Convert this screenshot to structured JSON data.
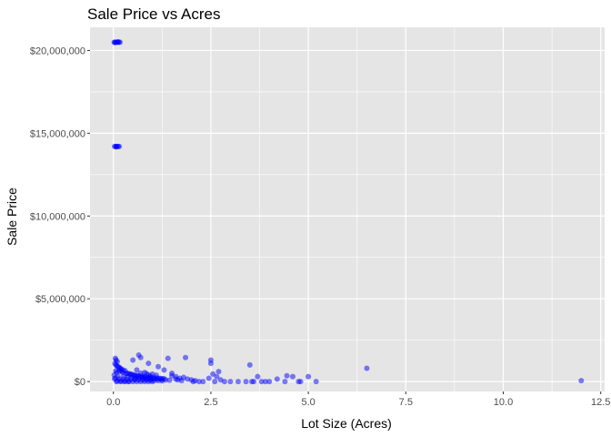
{
  "chart_data": {
    "type": "scatter",
    "title": "Sale Price vs Acres",
    "xlabel": "Lot Size (Acres)",
    "ylabel": "Sale Price",
    "xlim": [
      -0.6,
      12.6
    ],
    "ylim": [
      -600000,
      21400000
    ],
    "x_ticks": [
      0,
      2.5,
      5,
      7.5,
      10,
      12.5
    ],
    "x_tick_labels": [
      "0.0",
      "2.5",
      "5.0",
      "7.5",
      "10.0",
      "12.5"
    ],
    "y_ticks": [
      0,
      5000000,
      10000000,
      15000000,
      20000000
    ],
    "y_tick_labels": [
      "$0",
      "$5,000,000",
      "$10,000,000",
      "$15,000,000",
      "$20,000,000"
    ],
    "grid": true,
    "point_color": "#0000ff",
    "point_alpha": 0.5,
    "panel_background": "#e5e5e5",
    "grid_color": "#ffffff",
    "points": [
      [
        0.02,
        20500000
      ],
      [
        0.05,
        20500000
      ],
      [
        0.08,
        20500000
      ],
      [
        0.11,
        20500000
      ],
      [
        0.14,
        20500000
      ],
      [
        0.17,
        20500000
      ],
      [
        0.04,
        20480000
      ],
      [
        0.12,
        20520000
      ],
      [
        0.03,
        14200000
      ],
      [
        0.06,
        14200000
      ],
      [
        0.09,
        14200000
      ],
      [
        0.12,
        14200000
      ],
      [
        0.15,
        14200000
      ],
      [
        0.07,
        14180000
      ],
      [
        0.05,
        1400000
      ],
      [
        0.07,
        1300000
      ],
      [
        0.1,
        1200000
      ],
      [
        0.04,
        1100000
      ],
      [
        0.06,
        1000000
      ],
      [
        0.09,
        950000
      ],
      [
        0.12,
        900000
      ],
      [
        0.15,
        850000
      ],
      [
        0.18,
        800000
      ],
      [
        0.2,
        750000
      ],
      [
        0.25,
        700000
      ],
      [
        0.3,
        650000
      ],
      [
        0.22,
        600000
      ],
      [
        0.08,
        550000
      ],
      [
        0.35,
        500000
      ],
      [
        0.4,
        480000
      ],
      [
        0.45,
        450000
      ],
      [
        0.5,
        420000
      ],
      [
        0.02,
        400000
      ],
      [
        0.55,
        380000
      ],
      [
        0.6,
        360000
      ],
      [
        0.65,
        340000
      ],
      [
        0.7,
        320000
      ],
      [
        0.12,
        300000
      ],
      [
        0.75,
        300000
      ],
      [
        0.8,
        280000
      ],
      [
        0.85,
        260000
      ],
      [
        0.9,
        250000
      ],
      [
        0.95,
        240000
      ],
      [
        1.0,
        230000
      ],
      [
        0.05,
        220000
      ],
      [
        1.05,
        220000
      ],
      [
        1.1,
        210000
      ],
      [
        1.15,
        200000
      ],
      [
        1.2,
        190000
      ],
      [
        1.25,
        180000
      ],
      [
        1.3,
        170000
      ],
      [
        0.03,
        160000
      ],
      [
        0.15,
        150000
      ],
      [
        0.25,
        140000
      ],
      [
        0.35,
        130000
      ],
      [
        0.45,
        120000
      ],
      [
        0.55,
        110000
      ],
      [
        0.65,
        100000
      ],
      [
        0.75,
        90000
      ],
      [
        0.85,
        80000
      ],
      [
        0.95,
        70000
      ],
      [
        1.05,
        60000
      ],
      [
        1.15,
        50000
      ],
      [
        1.25,
        40000
      ],
      [
        0.1,
        30000
      ],
      [
        0.2,
        20000
      ],
      [
        0.3,
        10000
      ],
      [
        0.4,
        0
      ],
      [
        0.5,
        0
      ],
      [
        0.6,
        0
      ],
      [
        0.7,
        0
      ],
      [
        0.8,
        0
      ],
      [
        0.9,
        0
      ],
      [
        1.0,
        0
      ],
      [
        0.08,
        0
      ],
      [
        0.18,
        0
      ],
      [
        0.28,
        0
      ],
      [
        0.38,
        0
      ],
      [
        0.14,
        600000
      ],
      [
        0.24,
        550000
      ],
      [
        0.34,
        480000
      ],
      [
        0.44,
        420000
      ],
      [
        0.54,
        360000
      ],
      [
        0.64,
        300000
      ],
      [
        0.74,
        250000
      ],
      [
        0.84,
        200000
      ],
      [
        0.94,
        180000
      ],
      [
        1.04,
        160000
      ],
      [
        1.14,
        140000
      ],
      [
        1.24,
        120000
      ],
      [
        1.34,
        100000
      ],
      [
        1.44,
        80000
      ],
      [
        0.06,
        650000
      ],
      [
        0.16,
        700000
      ],
      [
        0.26,
        300000
      ],
      [
        0.36,
        280000
      ],
      [
        0.46,
        250000
      ],
      [
        0.56,
        230000
      ],
      [
        0.66,
        210000
      ],
      [
        0.76,
        190000
      ],
      [
        0.86,
        170000
      ],
      [
        0.96,
        150000
      ],
      [
        0.6,
        700000
      ],
      [
        0.7,
        500000
      ],
      [
        0.8,
        550000
      ],
      [
        0.9,
        400000
      ],
      [
        1.0,
        450000
      ],
      [
        0.85,
        480000
      ],
      [
        0.95,
        330000
      ],
      [
        1.1,
        380000
      ],
      [
        1.5,
        500000
      ],
      [
        1.6,
        300000
      ],
      [
        1.7,
        200000
      ],
      [
        1.8,
        250000
      ],
      [
        1.85,
        1450000
      ],
      [
        1.9,
        150000
      ],
      [
        2.0,
        100000
      ],
      [
        2.1,
        50000
      ],
      [
        1.4,
        1400000
      ],
      [
        1.5,
        350000
      ],
      [
        1.6,
        150000
      ],
      [
        2.05,
        0
      ],
      [
        2.2,
        0
      ],
      [
        2.3,
        0
      ],
      [
        1.65,
        100000
      ],
      [
        1.75,
        50000
      ],
      [
        0.5,
        1300000
      ],
      [
        0.65,
        1600000
      ],
      [
        0.7,
        1450000
      ],
      [
        0.9,
        1100000
      ],
      [
        1.15,
        900000
      ],
      [
        1.3,
        700000
      ],
      [
        0.75,
        250000
      ],
      [
        0.55,
        150000
      ],
      [
        2.5,
        1100000
      ],
      [
        2.55,
        450000
      ],
      [
        2.6,
        0
      ],
      [
        2.65,
        300000
      ],
      [
        2.7,
        600000
      ],
      [
        2.75,
        100000
      ],
      [
        2.85,
        0
      ],
      [
        2.45,
        200000
      ],
      [
        2.5,
        1300000
      ],
      [
        3.0,
        0
      ],
      [
        3.2,
        0
      ],
      [
        3.4,
        0
      ],
      [
        3.5,
        1000000
      ],
      [
        3.55,
        0
      ],
      [
        3.6,
        0
      ],
      [
        3.7,
        300000
      ],
      [
        3.8,
        0
      ],
      [
        3.9,
        0
      ],
      [
        4.0,
        0
      ],
      [
        4.2,
        150000
      ],
      [
        4.4,
        0
      ],
      [
        4.45,
        350000
      ],
      [
        4.6,
        300000
      ],
      [
        4.75,
        0
      ],
      [
        4.8,
        0
      ],
      [
        5.0,
        300000
      ],
      [
        5.2,
        0
      ],
      [
        6.5,
        800000
      ],
      [
        12.0,
        50000
      ]
    ]
  }
}
